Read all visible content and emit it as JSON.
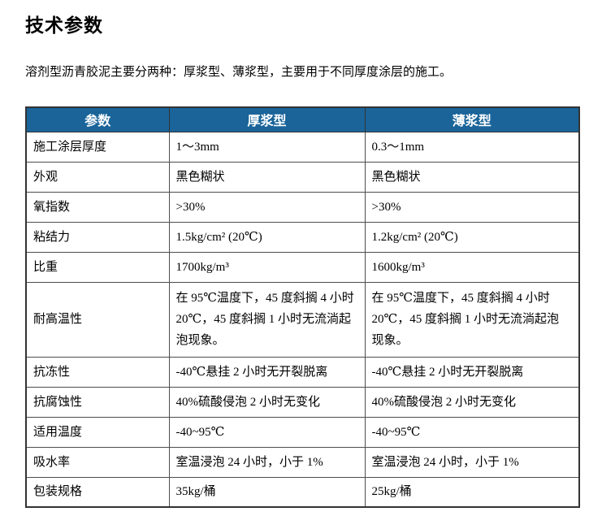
{
  "page": {
    "title": "技术参数",
    "intro": "溶剂型沥青胶泥主要分两种：厚浆型、薄浆型，主要用于不同厚度涂层的施工。"
  },
  "colors": {
    "header_bg": "#1a6499",
    "header_text": "#ffffff",
    "border": "#333333"
  },
  "table": {
    "headers": [
      "参数",
      "厚浆型",
      "薄浆型"
    ],
    "rows": [
      {
        "param": "施工涂层厚度",
        "thick": "1～3mm",
        "thin": "0.3～1mm"
      },
      {
        "param": "外观",
        "thick": "黑色糊状",
        "thin": "黑色糊状"
      },
      {
        "param": "氧指数",
        "thick": ">30%",
        "thin": ">30%"
      },
      {
        "param": "粘结力",
        "thick": "1.5kg/cm² (20℃)",
        "thin": "1.2kg/cm² (20℃)"
      },
      {
        "param": "比重",
        "thick": "1700kg/m³",
        "thin": "1600kg/m³"
      },
      {
        "param": "耐高温性",
        "thick": "在 95℃温度下，45 度斜搁 4 小时 20℃，45 度斜搁 1 小时无流淌起泡现象。",
        "thin": "在 95℃温度下，45 度斜搁 4 小时 20℃，45 度斜搁 1 小时无流淌起泡现象。"
      },
      {
        "param": "抗冻性",
        "thick": "-40℃悬挂 2 小时无开裂脱离",
        "thin": "-40℃悬挂 2 小时无开裂脱离"
      },
      {
        "param": "抗腐蚀性",
        "thick": "40%硫酸侵泡 2 小时无变化",
        "thin": "40%硫酸侵泡 2 小时无变化"
      },
      {
        "param": "适用温度",
        "thick": "-40~95℃",
        "thin": "-40~95℃"
      },
      {
        "param": "吸水率",
        "thick": "室温浸泡 24 小时，小于 1%",
        "thin": "室温浸泡 24 小时，小于 1%"
      },
      {
        "param": "包装规格",
        "thick": "35kg/桶",
        "thin": "25kg/桶"
      }
    ]
  }
}
